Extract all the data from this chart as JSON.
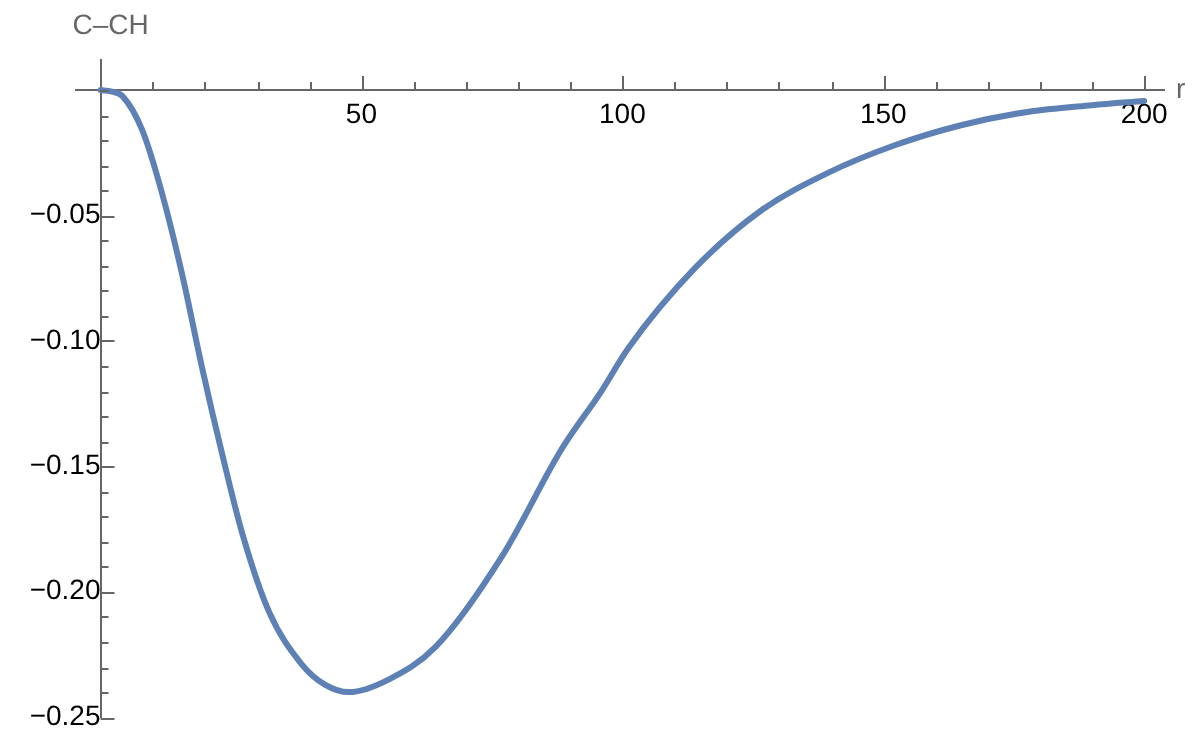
{
  "chart_data": {
    "type": "line",
    "xlabel": "r",
    "ylabel": "C–CH",
    "xlim": [
      -4.7,
      203.8
    ],
    "ylim": [
      -0.25,
      0.012
    ],
    "xticks": [
      {
        "value": 10,
        "label": null
      },
      {
        "value": 20,
        "label": null
      },
      {
        "value": 30,
        "label": null
      },
      {
        "value": 40,
        "label": null
      },
      50,
      {
        "value": 60,
        "label": null
      },
      {
        "value": 70,
        "label": null
      },
      {
        "value": 80,
        "label": null
      },
      {
        "value": 90,
        "label": null
      },
      100,
      {
        "value": 110,
        "label": null
      },
      {
        "value": 120,
        "label": null
      },
      {
        "value": 130,
        "label": null
      },
      {
        "value": 140,
        "label": null
      },
      150,
      {
        "value": 160,
        "label": null
      },
      {
        "value": 170,
        "label": null
      },
      {
        "value": 180,
        "label": null
      },
      {
        "value": 190,
        "label": null
      },
      200
    ],
    "yticks": [
      {
        "value": 0,
        "label": null
      },
      {
        "value": -0.01,
        "label": null
      },
      {
        "value": -0.02,
        "label": null
      },
      {
        "value": -0.03,
        "label": null
      },
      {
        "value": -0.04,
        "label": null
      },
      {
        "value": -0.05,
        "label": "−0.05"
      },
      {
        "value": -0.06,
        "label": null
      },
      {
        "value": -0.07,
        "label": null
      },
      {
        "value": -0.08,
        "label": null
      },
      {
        "value": -0.09,
        "label": null
      },
      {
        "value": -0.1,
        "label": "−0.10"
      },
      {
        "value": -0.11,
        "label": null
      },
      {
        "value": -0.12,
        "label": null
      },
      {
        "value": -0.13,
        "label": null
      },
      {
        "value": -0.14,
        "label": null
      },
      {
        "value": -0.15,
        "label": "−0.15"
      },
      {
        "value": -0.16,
        "label": null
      },
      {
        "value": -0.17,
        "label": null
      },
      {
        "value": -0.18,
        "label": null
      },
      {
        "value": -0.19,
        "label": null
      },
      {
        "value": -0.2,
        "label": "−0.20"
      },
      {
        "value": -0.21,
        "label": null
      },
      {
        "value": -0.22,
        "label": null
      },
      {
        "value": -0.23,
        "label": null
      },
      {
        "value": -0.24,
        "label": null
      },
      {
        "value": -0.25,
        "label": "−0.25"
      }
    ],
    "x": [
      0,
      2,
      4.2,
      8,
      11.9,
      15.7,
      19.5,
      23.3,
      27.2,
      32.3,
      38.6,
      43,
      47.6,
      55.2,
      64.2,
      76.9,
      88.4,
      96,
      101.1,
      113.9,
      126.6,
      139.4,
      152.2,
      164.9,
      177.6,
      190,
      200
    ],
    "series": [
      {
        "color": "#5e81b5",
        "values": [
          0,
          -0.0005,
          -0.0024,
          -0.016,
          -0.042,
          -0.074,
          -0.111,
          -0.145,
          -0.177,
          -0.208,
          -0.229,
          -0.237,
          -0.24,
          -0.235,
          -0.222,
          -0.186,
          -0.143,
          -0.12,
          -0.103,
          -0.071,
          -0.048,
          -0.033,
          -0.022,
          -0.014,
          -0.0087,
          -0.006,
          -0.0043
        ]
      }
    ],
    "legend": false,
    "marker": "none",
    "line_style": "solid"
  }
}
